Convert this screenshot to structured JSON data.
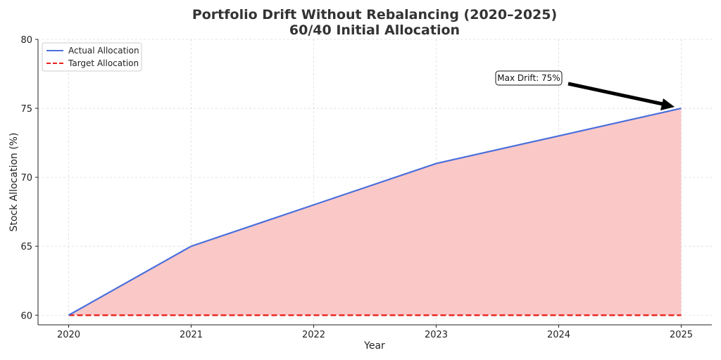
{
  "chart_data": {
    "type": "area",
    "title": "Portfolio Drift Without Rebalancing (2020–2025)",
    "subtitle": "60/40 Initial Allocation",
    "xlabel": "Year",
    "ylabel": "Stock Allocation (%)",
    "x": [
      2020,
      2021,
      2022,
      2023,
      2024,
      2025
    ],
    "x_ticks": [
      "2020",
      "2021",
      "2022",
      "2023",
      "2024",
      "2025"
    ],
    "y_ticks": [
      "60",
      "65",
      "70",
      "75",
      "80"
    ],
    "xlim": [
      2019.75,
      2025.25
    ],
    "ylim": [
      59.3,
      80
    ],
    "grid": true,
    "legend_position": "top-left",
    "series": [
      {
        "name": "Actual Allocation",
        "values": [
          60,
          65,
          68,
          71,
          73,
          75
        ],
        "color": "#4a6fdc",
        "style": "solid"
      },
      {
        "name": "Target Allocation",
        "values": [
          60,
          60,
          60,
          60,
          60,
          60
        ],
        "color": "#e8201c",
        "style": "dashed"
      }
    ],
    "fill_color": "#fbc8c8",
    "annotation": {
      "text": "Max Drift: 75%",
      "x": 2025,
      "y": 75
    }
  }
}
